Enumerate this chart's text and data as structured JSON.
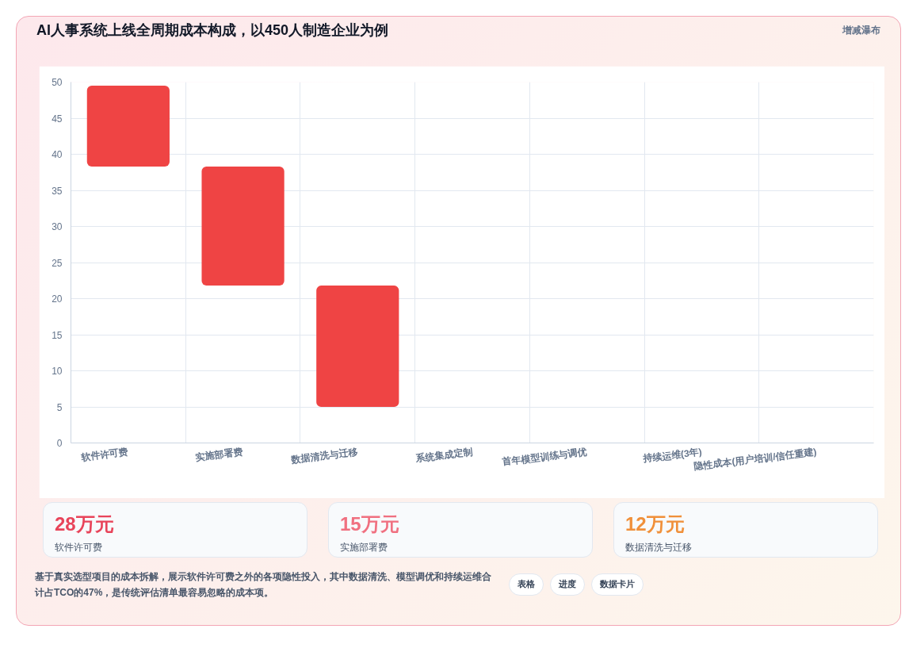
{
  "chart_data": {
    "type": "bar",
    "title": "AI人事系统上线全周期成本构成，以450人制造企业为例",
    "categories": [
      "软件许可费",
      "实施部署费",
      "数据清洗与迁移",
      "系统集成定制",
      "首年模型训练与调优",
      "持续运维(3年)",
      "隐性成本(用户培训/信任重建)"
    ],
    "values": [
      11.2,
      16.5,
      16.8,
      null,
      null,
      null,
      null
    ],
    "base": [
      38.3,
      21.8,
      5.0,
      null,
      null,
      null,
      null
    ],
    "color": "#ef4444",
    "ylim": [
      0,
      50
    ],
    "yticks": [
      0,
      5,
      10,
      15,
      20,
      25,
      30,
      35,
      40,
      45,
      50
    ],
    "grid": true,
    "annotations": [
      "增减瀑布",
      "28万元",
      "软件许可费",
      "15万元",
      "实施部署费",
      "12万元",
      "数据清洗与迁移",
      "基于真实选型项目的成本拆解，展示软件许可费之外的各项隐性投入，其中数据清洗、模型调优和持续运维合计占TCO的47%，是传统评估清单最容易忽略的成本项。",
      "表格",
      "进度",
      "数据卡片"
    ]
  }
}
